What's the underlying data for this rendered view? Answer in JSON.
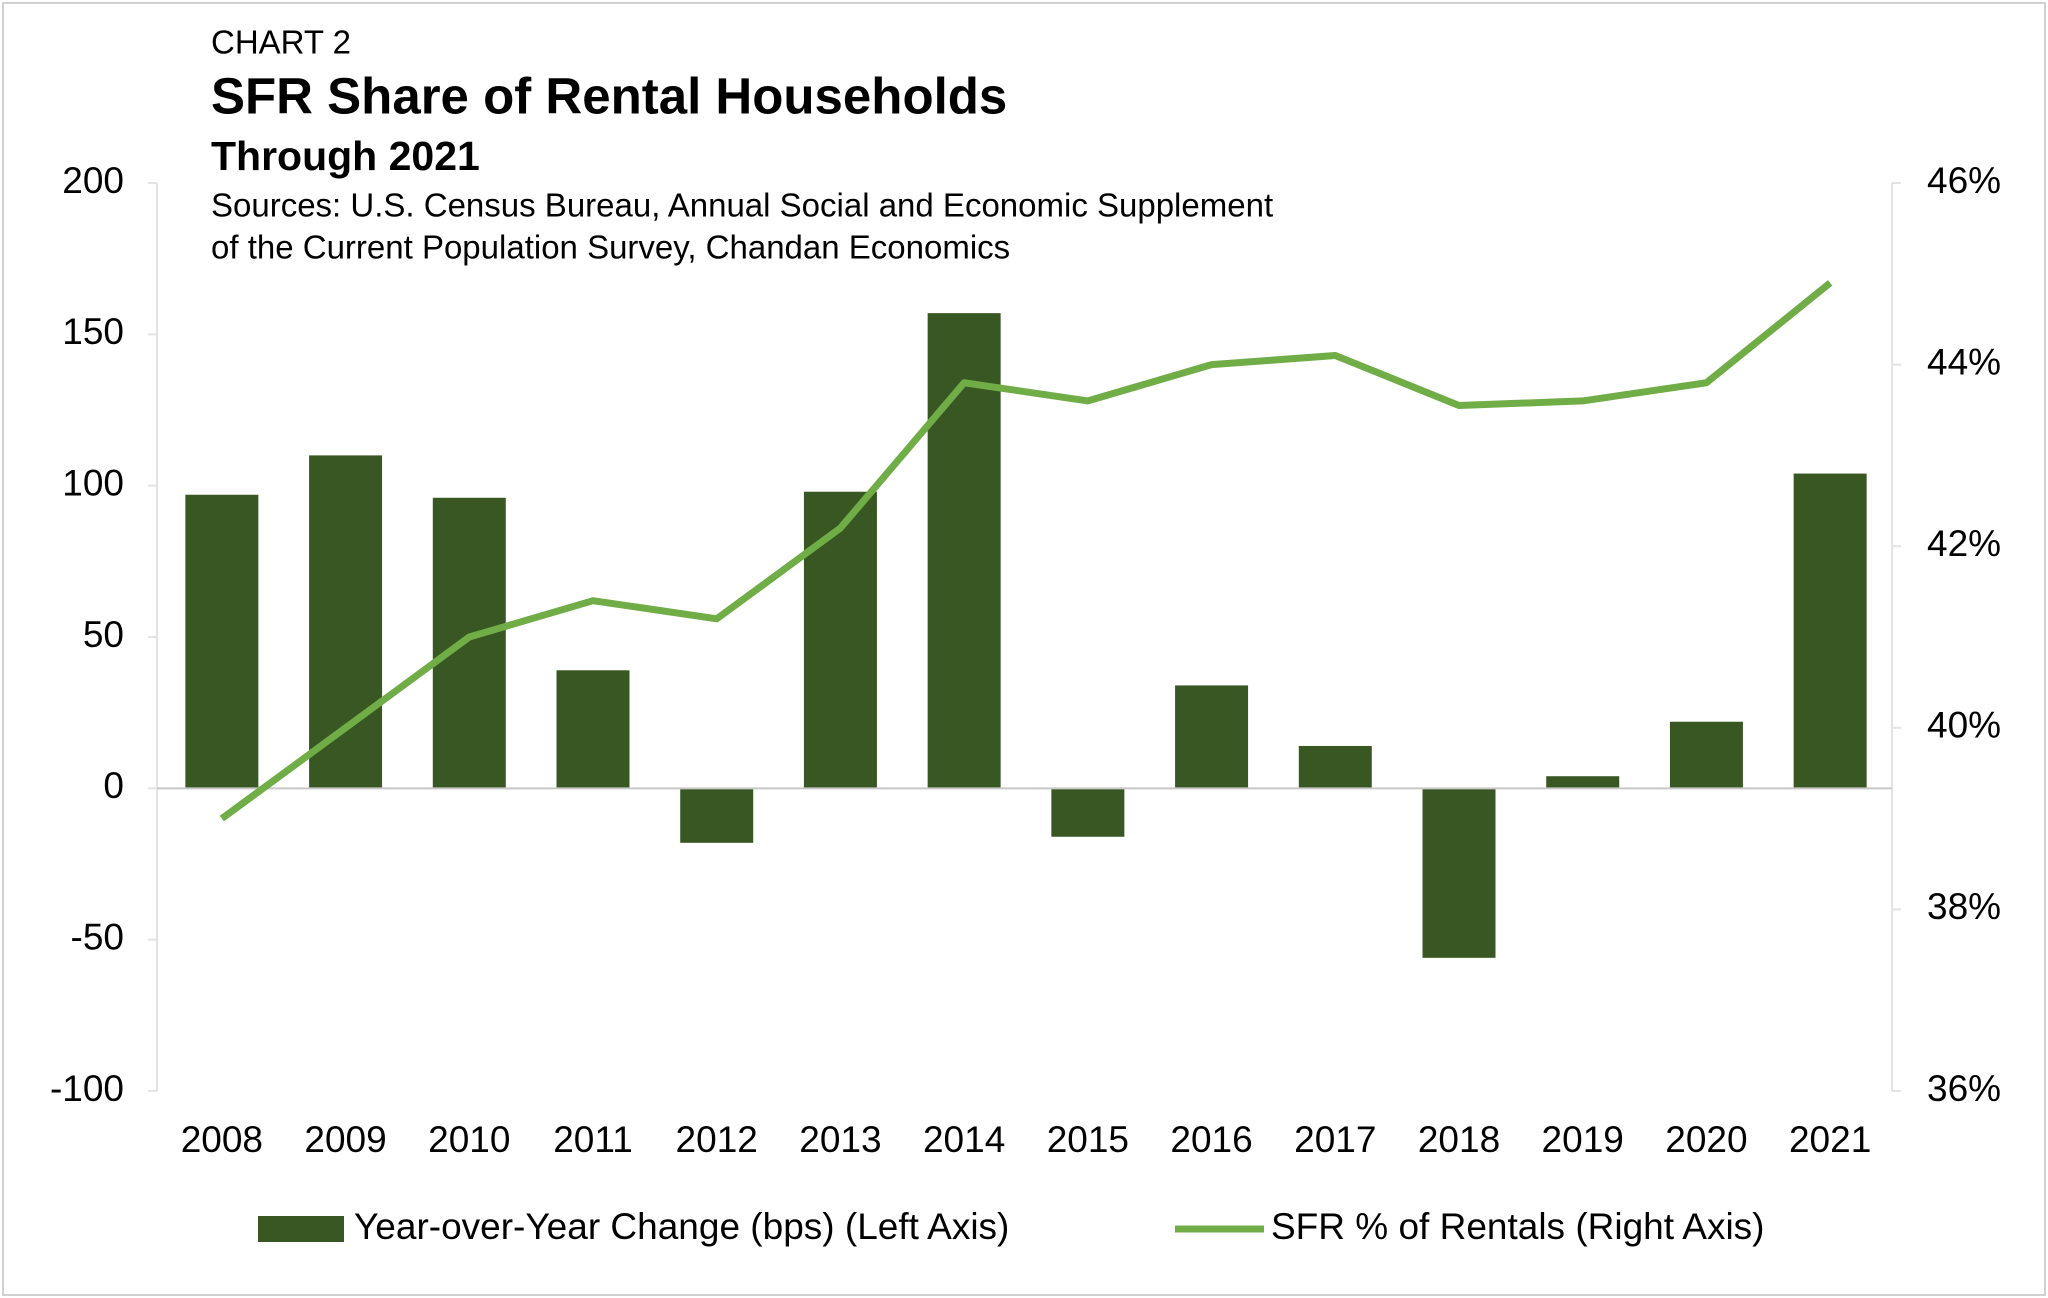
{
  "chart_data": {
    "type": "bar",
    "eyebrow": "CHART 2",
    "title": "SFR Share of Rental Households",
    "subtitle": "Through 2021",
    "source": [
      "Sources: U.S. Census Bureau, Annual Social and Economic Supplement",
      "of the Current Population Survey, Chandan Economics"
    ],
    "categories": [
      "2008",
      "2009",
      "2010",
      "2011",
      "2012",
      "2013",
      "2014",
      "2015",
      "2016",
      "2017",
      "2018",
      "2019",
      "2020",
      "2021"
    ],
    "series": [
      {
        "name": "Year-over-Year Change (bps) (Left Axis)",
        "type": "bar",
        "axis": "y",
        "color": "#385723",
        "values": [
          97,
          110,
          96,
          39,
          -18,
          98,
          157,
          -16,
          34,
          14,
          -56,
          4,
          22,
          104
        ]
      },
      {
        "name": "SFR % of Rentals (Right Axis)",
        "type": "line",
        "axis": "y2",
        "color": "#70ad47",
        "values": [
          39.0,
          40.0,
          41.0,
          41.4,
          41.2,
          42.2,
          43.8,
          43.6,
          44.0,
          44.1,
          43.55,
          43.6,
          43.8,
          44.9
        ]
      }
    ],
    "ylim": [
      -100,
      200
    ],
    "yticks": [
      -100,
      -50,
      0,
      50,
      100,
      150,
      200
    ],
    "y2lim": [
      36,
      46
    ],
    "y2ticks": [
      {
        "value": 36,
        "label": "36%"
      },
      {
        "value": 38,
        "label": "38%"
      },
      {
        "value": 40,
        "label": "40%"
      },
      {
        "value": 42,
        "label": "42%"
      },
      {
        "value": 44,
        "label": "44%"
      },
      {
        "value": 46,
        "label": "46%"
      }
    ],
    "legend": "bottom"
  }
}
